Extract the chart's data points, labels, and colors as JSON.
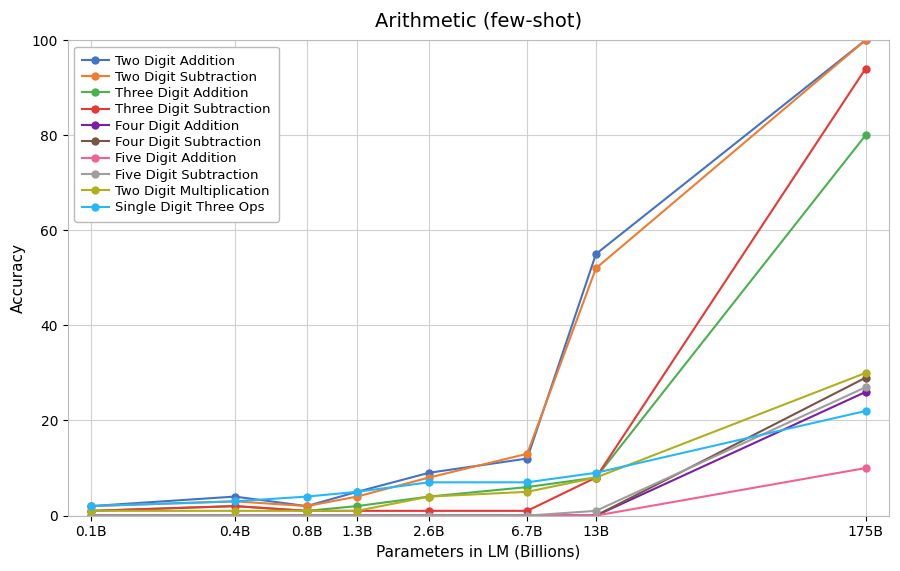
{
  "title": "Arithmetic (few-shot)",
  "xlabel": "Parameters in LM (Billions)",
  "ylabel": "Accuracy",
  "x_labels": [
    "0.1B",
    "0.4B",
    "0.8B",
    "1.3B",
    "2.6B",
    "6.7B",
    "13B",
    "175B"
  ],
  "x_values": [
    0.1,
    0.4,
    0.8,
    1.3,
    2.6,
    6.7,
    13,
    175
  ],
  "series": [
    {
      "label": "Two Digit Addition",
      "color": "#4472C4",
      "marker": "o",
      "values": [
        2,
        4,
        2,
        5,
        9,
        12,
        55,
        100
      ]
    },
    {
      "label": "Two Digit Subtraction",
      "color": "#ED7D31",
      "marker": "o",
      "values": [
        2,
        3,
        2,
        4,
        8,
        13,
        52,
        100
      ]
    },
    {
      "label": "Three Digit Addition",
      "color": "#4CAF50",
      "marker": "o",
      "values": [
        1,
        2,
        1,
        2,
        4,
        6,
        8,
        80
      ]
    },
    {
      "label": "Three Digit Subtraction",
      "color": "#E53935",
      "marker": "o",
      "values": [
        1,
        2,
        1,
        1,
        1,
        1,
        8,
        94
      ]
    },
    {
      "label": "Four Digit Addition",
      "color": "#7B1FA2",
      "marker": "o",
      "values": [
        0,
        0,
        0,
        0,
        0,
        0,
        0,
        26
      ]
    },
    {
      "label": "Four Digit Subtraction",
      "color": "#795548",
      "marker": "o",
      "values": [
        0,
        0,
        0,
        0,
        0,
        0,
        0,
        29
      ]
    },
    {
      "label": "Five Digit Addition",
      "color": "#F06292",
      "marker": "o",
      "values": [
        0,
        0,
        0,
        0,
        0,
        0,
        0,
        10
      ]
    },
    {
      "label": "Five Digit Subtraction",
      "color": "#9E9E9E",
      "marker": "o",
      "values": [
        0,
        0,
        0,
        0,
        0,
        0,
        1,
        27
      ]
    },
    {
      "label": "Two Digit Multiplication",
      "color": "#AFAF20",
      "marker": "o",
      "values": [
        1,
        1,
        1,
        1,
        4,
        5,
        8,
        30
      ]
    },
    {
      "label": "Single Digit Three Ops",
      "color": "#29B6F6",
      "marker": "o",
      "values": [
        2,
        3,
        4,
        5,
        7,
        7,
        9,
        22
      ]
    }
  ],
  "ylim": [
    0,
    100
  ],
  "yticks": [
    0,
    20,
    40,
    60,
    80,
    100
  ],
  "background_color": "#ffffff",
  "grid_color": "#d0d0d0",
  "title_fontsize": 14,
  "label_fontsize": 11,
  "tick_fontsize": 10,
  "legend_fontsize": 9.5
}
